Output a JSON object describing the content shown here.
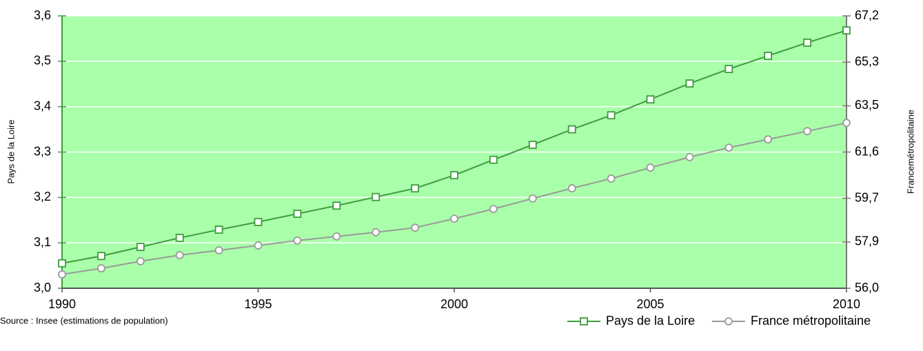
{
  "chart_data": {
    "type": "line",
    "source": "Source : Insee (estimations de population)",
    "ylabel": "Pays de la Loire",
    "y2label": "Francemétropolitaine",
    "x": [
      1990,
      1991,
      1992,
      1993,
      1994,
      1995,
      1996,
      1997,
      1998,
      1999,
      2000,
      2001,
      2002,
      2003,
      2004,
      2005,
      2006,
      2007,
      2008,
      2009,
      2010
    ],
    "xlim": [
      1990,
      2010
    ],
    "xticks": [
      1990,
      1995,
      2000,
      2005,
      2010
    ],
    "ylim": [
      3.0,
      3.6
    ],
    "yticks": [
      {
        "value": 3.0,
        "label": "3,0"
      },
      {
        "value": 3.1,
        "label": "3,1"
      },
      {
        "value": 3.2,
        "label": "3,2"
      },
      {
        "value": 3.3,
        "label": "3,3"
      },
      {
        "value": 3.4,
        "label": "3,4"
      },
      {
        "value": 3.5,
        "label": "3,5"
      },
      {
        "value": 3.6,
        "label": "3,6"
      }
    ],
    "y2lim": [
      56.0,
      67.2
    ],
    "y2ticks": [
      {
        "value": 56.0,
        "label": "56,0"
      },
      {
        "value": 57.9,
        "label": "57,9"
      },
      {
        "value": 59.7,
        "label": "59,7"
      },
      {
        "value": 61.6,
        "label": "61,6"
      },
      {
        "value": 63.5,
        "label": "63,5"
      },
      {
        "value": 65.3,
        "label": "65,3"
      },
      {
        "value": 67.2,
        "label": "67,2"
      }
    ],
    "grid": true,
    "legend": "lower right",
    "background": "#aaffaa",
    "series": [
      {
        "name": "Pays de la Loire",
        "color": "#3c9c3c",
        "marker": "square",
        "values": [
          3.055,
          3.071,
          3.091,
          3.111,
          3.129,
          3.146,
          3.164,
          3.182,
          3.201,
          3.22,
          3.249,
          3.283,
          3.316,
          3.35,
          3.381,
          3.416,
          3.451,
          3.483,
          3.512,
          3.541,
          3.568
        ]
      },
      {
        "name": "France métropolitaine",
        "color": "#999999",
        "marker": "circle",
        "axis": "y2",
        "values": [
          56.57,
          56.82,
          57.11,
          57.36,
          57.56,
          57.76,
          57.96,
          58.13,
          58.3,
          58.49,
          58.86,
          59.26,
          59.69,
          60.11,
          60.51,
          60.96,
          61.39,
          61.78,
          62.12,
          62.46,
          62.8
        ]
      }
    ]
  }
}
